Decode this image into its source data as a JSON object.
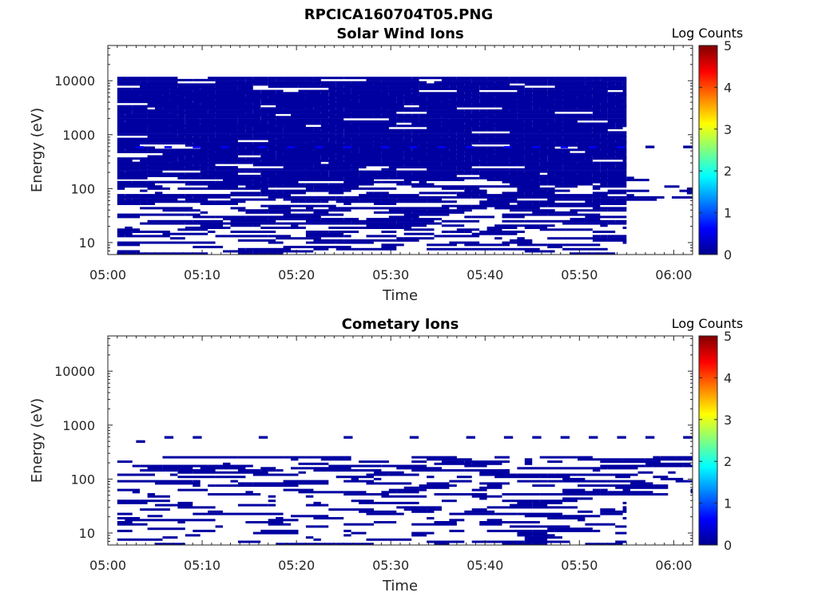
{
  "figure": {
    "title": "RPCICA160704T05.PNG"
  },
  "colormap": [
    "#00008f",
    "#0000ff",
    "#0080ff",
    "#00ffff",
    "#80ff80",
    "#ffff00",
    "#ff8000",
    "#ff0000",
    "#800000"
  ],
  "chart_data": [
    {
      "type": "heatmap",
      "title": "Solar Wind Ions",
      "xlabel": "Time",
      "ylabel": "Energy (eV)",
      "x_axis": {
        "type": "time",
        "range": [
          "05:00",
          "06:02"
        ],
        "ticks": [
          "05:00",
          "05:10",
          "05:20",
          "05:30",
          "05:40",
          "05:50",
          "06:00"
        ]
      },
      "y_axis": {
        "scale": "log",
        "range": [
          6,
          45000
        ],
        "ticks": [
          10,
          100,
          1000,
          10000
        ],
        "tick_labels": [
          "10",
          "100",
          "1000",
          "10000"
        ]
      },
      "colorbar": {
        "label": "Log Counts",
        "range": [
          0,
          5
        ],
        "ticks": [
          "0",
          "1",
          "2",
          "3",
          "4",
          "5"
        ]
      },
      "description_of_cells": "Dense coverage at value ~0.1-0.5 log counts from 05:01 to 05:55 between ~6 eV and ~11000 eV; sparse cells above 6 eV energies after 05:55.",
      "regions": [
        {
          "t_start": "05:01",
          "t_end": "05:55",
          "e_min": 150,
          "e_max": 11000,
          "value": 0.1,
          "fill": 0.93
        },
        {
          "t_start": "05:01",
          "t_end": "05:55",
          "e_min": 50,
          "e_max": 150,
          "value": 0.1,
          "fill": 0.72
        },
        {
          "t_start": "05:01",
          "t_end": "05:55",
          "e_min": 18,
          "e_max": 50,
          "value": 0.1,
          "fill": 0.55
        },
        {
          "t_start": "05:01",
          "t_end": "05:55",
          "e_min": 6,
          "e_max": 18,
          "value": 0.1,
          "fill": 0.4
        },
        {
          "t_start": "05:55",
          "t_end": "06:02",
          "e_min": 60,
          "e_max": 160,
          "value": 0.1,
          "fill": 0.35
        }
      ],
      "highlights": [
        {
          "e": 560,
          "value": 0.6,
          "times": [
            "05:03",
            "05:06",
            "05:09",
            "05:12",
            "05:16",
            "05:19",
            "05:22",
            "05:25",
            "05:29",
            "05:32",
            "05:35",
            "05:38",
            "05:42",
            "05:45",
            "05:48",
            "05:51",
            "05:54"
          ]
        }
      ],
      "spots": [
        {
          "t": "05:57",
          "e": 560,
          "value": 0.1
        },
        {
          "t": "06:01",
          "e": 560,
          "value": 0.1
        }
      ]
    },
    {
      "type": "heatmap",
      "title": "Cometary Ions",
      "xlabel": "Time",
      "ylabel": "Energy (eV)",
      "x_axis": {
        "type": "time",
        "range": [
          "05:00",
          "06:02"
        ],
        "ticks": [
          "05:00",
          "05:10",
          "05:20",
          "05:30",
          "05:40",
          "05:50",
          "06:00"
        ]
      },
      "y_axis": {
        "scale": "log",
        "range": [
          6,
          45000
        ],
        "ticks": [
          10,
          100,
          1000,
          10000
        ],
        "tick_labels": [
          "10",
          "100",
          "1000",
          "10000"
        ]
      },
      "colorbar": {
        "label": "Log Counts",
        "range": [
          0,
          5
        ],
        "ticks": [
          "0",
          "1",
          "2",
          "3",
          "4",
          "5"
        ]
      },
      "description_of_cells": "Sparse cells at ~0.1 log counts mostly between 6 eV and 250 eV from 05:01 to 06:02, with a few cells near 550 eV.",
      "regions": [
        {
          "t_start": "05:01",
          "t_end": "06:02",
          "e_min": 50,
          "e_max": 250,
          "value": 0.1,
          "fill": 0.42
        },
        {
          "t_start": "05:01",
          "t_end": "05:55",
          "e_min": 18,
          "e_max": 50,
          "value": 0.1,
          "fill": 0.3
        },
        {
          "t_start": "05:01",
          "t_end": "05:55",
          "e_min": 6,
          "e_max": 18,
          "value": 0.1,
          "fill": 0.28
        }
      ],
      "highlights": [],
      "spots": [
        {
          "t": "05:03",
          "e": 470,
          "value": 0.1
        },
        {
          "t": "05:06",
          "e": 560,
          "value": 0.1
        },
        {
          "t": "05:09",
          "e": 560,
          "value": 0.1
        },
        {
          "t": "05:16",
          "e": 560,
          "value": 0.1
        },
        {
          "t": "05:25",
          "e": 560,
          "value": 0.1
        },
        {
          "t": "05:32",
          "e": 560,
          "value": 0.1
        },
        {
          "t": "05:38",
          "e": 560,
          "value": 0.1
        },
        {
          "t": "05:42",
          "e": 560,
          "value": 0.1
        },
        {
          "t": "05:45",
          "e": 560,
          "value": 0.1
        },
        {
          "t": "05:48",
          "e": 560,
          "value": 0.1
        },
        {
          "t": "05:51",
          "e": 560,
          "value": 0.1
        },
        {
          "t": "05:54",
          "e": 560,
          "value": 0.1
        },
        {
          "t": "05:57",
          "e": 560,
          "value": 0.1
        },
        {
          "t": "06:01",
          "e": 560,
          "value": 0.1
        }
      ]
    }
  ]
}
